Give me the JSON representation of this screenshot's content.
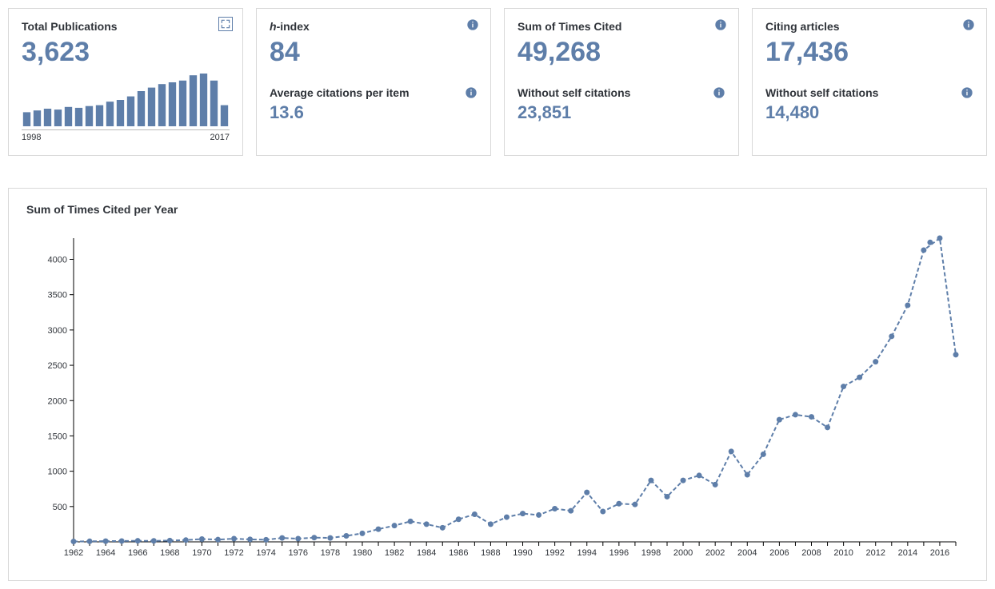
{
  "cards": {
    "publications": {
      "title": "Total Publications",
      "value": "3,623",
      "spark_start_label": "1998",
      "spark_end_label": "2017"
    },
    "hindex": {
      "title_prefix": "h",
      "title_suffix": "-index",
      "value": "84",
      "sub_title": "Average citations per item",
      "sub_value": "13.6"
    },
    "cited": {
      "title": "Sum of Times Cited",
      "value": "49,268",
      "sub_title": "Without self citations",
      "sub_value": "23,851"
    },
    "citing": {
      "title": "Citing articles",
      "value": "17,436",
      "sub_title": "Without self citations",
      "sub_value": "14,480"
    }
  },
  "sparkline": {
    "type": "bar",
    "bar_color": "#5e7ea9",
    "values": [
      80,
      90,
      100,
      95,
      110,
      105,
      115,
      120,
      140,
      150,
      170,
      200,
      220,
      240,
      250,
      260,
      290,
      300,
      260,
      120
    ],
    "baseline_color": "#b8b8b8"
  },
  "line_chart": {
    "type": "line",
    "title": "Sum of Times Cited per Year",
    "series_color": "#5e7ea9",
    "marker_color": "#5e7ea9",
    "marker_radius": 3.5,
    "line_width": 2,
    "dash_pattern": "5 3",
    "background_color": "#ffffff",
    "axis_color": "#000000",
    "label_fontsize": 11,
    "ylim": [
      0,
      4300
    ],
    "yticks": [
      500,
      1000,
      1500,
      2000,
      2500,
      3000,
      3500,
      4000
    ],
    "x_start": 1962,
    "x_end": 2017,
    "xtick_step": 2,
    "data": [
      {
        "year": 1962,
        "value": 5
      },
      {
        "year": 1963,
        "value": 8
      },
      {
        "year": 1964,
        "value": 10
      },
      {
        "year": 1965,
        "value": 12
      },
      {
        "year": 1966,
        "value": 15
      },
      {
        "year": 1967,
        "value": 14
      },
      {
        "year": 1968,
        "value": 18
      },
      {
        "year": 1969,
        "value": 25
      },
      {
        "year": 1970,
        "value": 40
      },
      {
        "year": 1971,
        "value": 32
      },
      {
        "year": 1972,
        "value": 45
      },
      {
        "year": 1973,
        "value": 35
      },
      {
        "year": 1974,
        "value": 30
      },
      {
        "year": 1975,
        "value": 55
      },
      {
        "year": 1976,
        "value": 45
      },
      {
        "year": 1977,
        "value": 60
      },
      {
        "year": 1978,
        "value": 55
      },
      {
        "year": 1979,
        "value": 85
      },
      {
        "year": 1980,
        "value": 120
      },
      {
        "year": 1981,
        "value": 180
      },
      {
        "year": 1982,
        "value": 230
      },
      {
        "year": 1983,
        "value": 290
      },
      {
        "year": 1984,
        "value": 250
      },
      {
        "year": 1985,
        "value": 200
      },
      {
        "year": 1986,
        "value": 320
      },
      {
        "year": 1987,
        "value": 390
      },
      {
        "year": 1988,
        "value": 250
      },
      {
        "year": 1989,
        "value": 350
      },
      {
        "year": 1990,
        "value": 400
      },
      {
        "year": 1991,
        "value": 380
      },
      {
        "year": 1992,
        "value": 470
      },
      {
        "year": 1993,
        "value": 440
      },
      {
        "year": 1994,
        "value": 700
      },
      {
        "year": 1995,
        "value": 430
      },
      {
        "year": 1996,
        "value": 540
      },
      {
        "year": 1997,
        "value": 530
      },
      {
        "year": 1998,
        "value": 870
      },
      {
        "year": 1999,
        "value": 640
      },
      {
        "year": 2000,
        "value": 870
      },
      {
        "year": 2001,
        "value": 940
      },
      {
        "year": 2002,
        "value": 810
      },
      {
        "year": 2003,
        "value": 1280
      },
      {
        "year": 2004,
        "value": 950
      },
      {
        "year": 2005,
        "value": 1240
      },
      {
        "year": 2006,
        "value": 1730
      },
      {
        "year": 2007,
        "value": 1800
      },
      {
        "year": 2008,
        "value": 1770
      },
      {
        "year": 2009,
        "value": 1620
      },
      {
        "year": 2010,
        "value": 2200
      },
      {
        "year": 2011,
        "value": 2330
      },
      {
        "year": 2012,
        "value": 2550
      },
      {
        "year": 2013,
        "value": 2910
      },
      {
        "year": 2014,
        "value": 3350
      },
      {
        "year": 2015,
        "value": 4130
      },
      {
        "year": 2016,
        "value": 4300
      },
      {
        "year": 2017,
        "value": 2650
      }
    ],
    "extra_point": {
      "x_after": 2015.4,
      "value": 4240
    }
  }
}
